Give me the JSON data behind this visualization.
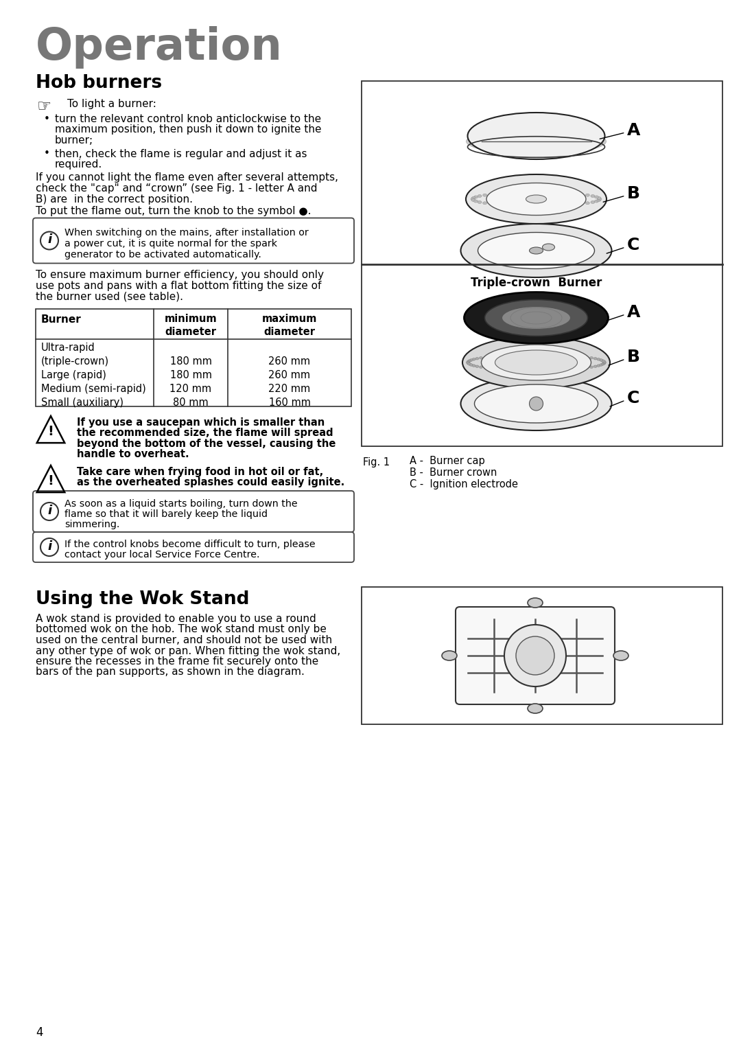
{
  "page_title": "Operation",
  "section1_title": "Hob burners",
  "finger_text": "To light a burner:",
  "b1_lines": [
    "turn the relevant control knob anticlockwise to the",
    "maximum position, then push it down to ignite the",
    "burner;"
  ],
  "b2_lines": [
    "then, check the flame is regular and adjust it as",
    "required."
  ],
  "p1_lines": [
    "If you cannot light the flame even after several attempts,",
    "check the \"cap\" and “crown” (see Fig. 1 - letter A and",
    "B) are  in the correct position."
  ],
  "para2": "To put the flame out, turn the knob to the symbol ●.",
  "info1_lines": [
    "When switching on the mains, after installation or",
    "a power cut, it is quite normal for the spark",
    "generator to be activated automatically."
  ],
  "p3_lines": [
    "To ensure maximum burner efficiency, you should only",
    "use pots and pans with a flat bottom fitting the size of",
    "the burner used (see table)."
  ],
  "table_headers": [
    "Burner",
    "minimum\ndiameter",
    "maximum\ndiameter"
  ],
  "table_rows": [
    [
      "Ultra-rapid\n(triple-crown)",
      "180 mm",
      "260 mm"
    ],
    [
      "Large (rapid)",
      "180 mm",
      "260 mm"
    ],
    [
      "Medium (semi-rapid)",
      "120 mm",
      "220 mm"
    ],
    [
      "Small (auxiliary)",
      "80 mm",
      "160 mm"
    ]
  ],
  "w1_lines": [
    "If you use a saucepan which is smaller than",
    "the recommended size, the flame will spread",
    "beyond the bottom of the vessel, causing the",
    "handle to overheat."
  ],
  "w2_lines": [
    "Take care when frying food in hot oil or fat,",
    "as the overheated splashes could easily ignite."
  ],
  "info2_lines": [
    "As soon as a liquid starts boiling, turn down the",
    "flame so that it will barely keep the liquid",
    "simmering."
  ],
  "info3_lines": [
    "If the control knobs become difficult to turn, please",
    "contact your local Service Force Centre."
  ],
  "section2_title": "Using the Wok Stand",
  "wok_lines": [
    "A wok stand is provided to enable you to use a round",
    "bottomed wok on the hob. The wok stand must only be",
    "used on the central burner, and should not be used with",
    "any other type of wok or pan. When fitting the wok stand,",
    "ensure the recesses in the frame fit securely onto the",
    "bars of the pan supports, as shown in the diagram."
  ],
  "fig1_label": "Fig. 1",
  "triple_crown_label": "Triple-crown  Burner",
  "legend_a": "A -  Burner cap",
  "legend_b": "B -  Burner crown",
  "legend_c": "C -  Ignition electrode",
  "page_number": "4",
  "bg_color": "#ffffff",
  "text_color": "#000000",
  "title_color": "#777777"
}
